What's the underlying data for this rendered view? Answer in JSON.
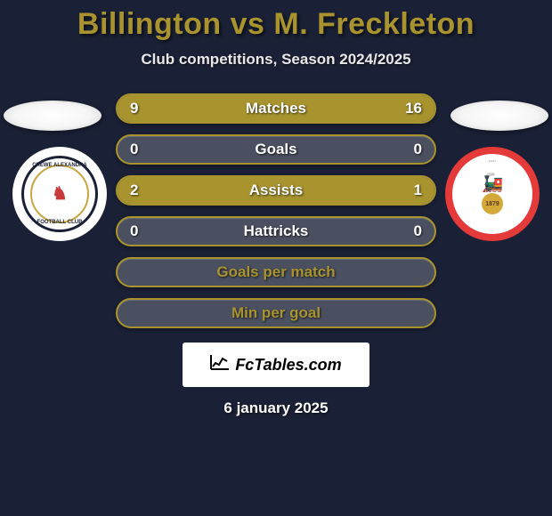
{
  "title_color": "#a8932f",
  "background_color": "#1a2035",
  "player_left": "Billington",
  "vs": " vs ",
  "player_right": "M. Freckleton",
  "subtitle": "Club competitions, Season 2024/2025",
  "date": "6 january 2025",
  "footer": {
    "brand": "FcTables.com"
  },
  "colors": {
    "bar_border": "#a8932f",
    "bar_empty": "#4a5060",
    "bar_fill_left": "#a8932f",
    "bar_fill_right": "#a8932f"
  },
  "bars": [
    {
      "label": "Matches",
      "left": "9",
      "right": "16",
      "left_pct": 36,
      "right_pct": 64,
      "has_values": true
    },
    {
      "label": "Goals",
      "left": "0",
      "right": "0",
      "left_pct": 0,
      "right_pct": 0,
      "has_values": true
    },
    {
      "label": "Assists",
      "left": "2",
      "right": "1",
      "left_pct": 67,
      "right_pct": 33,
      "has_values": true
    },
    {
      "label": "Hattricks",
      "left": "0",
      "right": "0",
      "left_pct": 0,
      "right_pct": 0,
      "has_values": true
    },
    {
      "label": "Goals per match",
      "left": "",
      "right": "",
      "left_pct": 0,
      "right_pct": 0,
      "has_values": false
    },
    {
      "label": "Min per goal",
      "left": "",
      "right": "",
      "left_pct": 0,
      "right_pct": 0,
      "has_values": false
    }
  ],
  "badge_left": {
    "text_top": "CREWE ALEXANDRA",
    "text_bot": "FOOTBALL CLUB"
  },
  "badge_right": {
    "year": "1879"
  }
}
